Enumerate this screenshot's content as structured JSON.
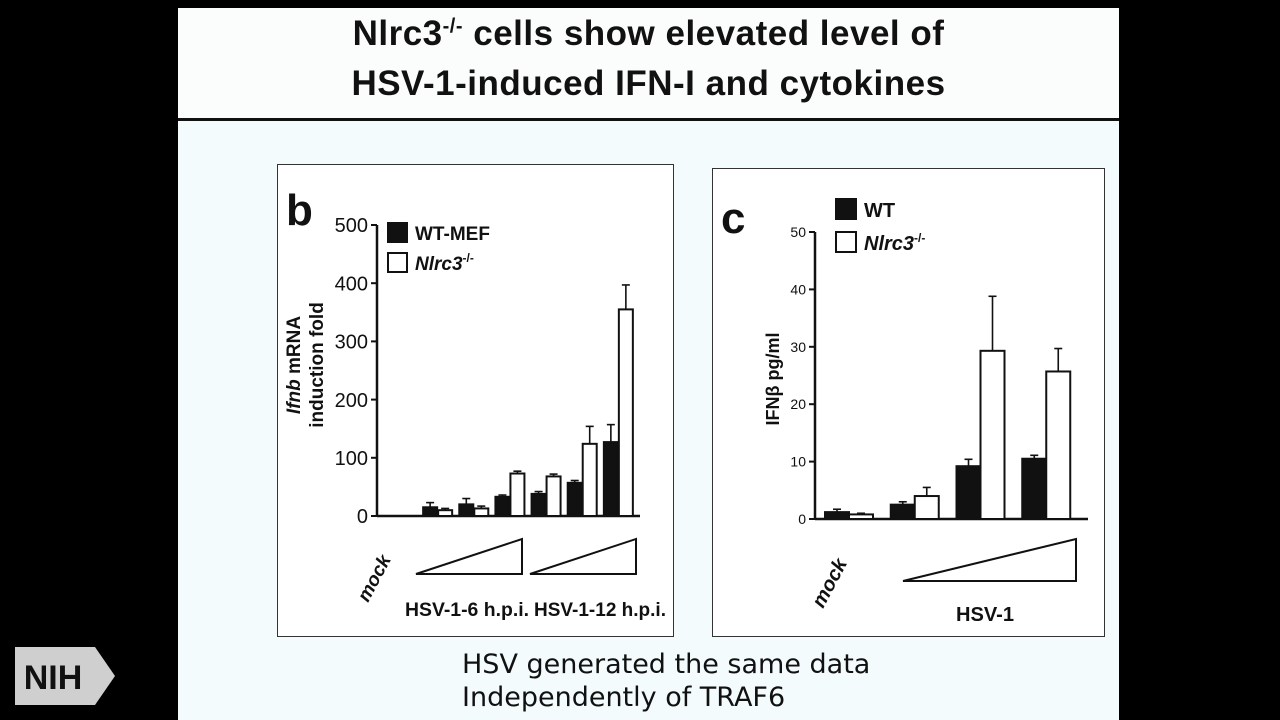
{
  "slide": {
    "title_prefix": "Nlrc3",
    "title_superscript": "-/-",
    "title_line1_rest": " cells show elevated level of",
    "title_line2": "HSV-1-induced IFN-I and cytokines",
    "caption_line1": "HSV generated the same data",
    "caption_line2": "Independently of TRAF6",
    "logo_text": "NIH"
  },
  "colors": {
    "filled_bar": "#111111",
    "open_bar": "#ffffff",
    "ink": "#111111"
  },
  "chart_data": [
    {
      "type": "bar",
      "panel_label": "b",
      "ylabel_italic": "Ifnb",
      "ylabel_rest": " mRNA",
      "ylabel_line2": "induction fold",
      "ylim": [
        0,
        500
      ],
      "yticks": [
        0,
        100,
        200,
        300,
        400,
        500
      ],
      "legend_position": "top-left",
      "series": [
        {
          "name": "WT-MEF",
          "fill": "filled",
          "values": [
            0,
            15,
            20,
            33,
            38,
            57,
            127
          ],
          "errors": [
            0,
            8,
            10,
            3,
            4,
            4,
            30
          ]
        },
        {
          "name": "Nlrc3",
          "name_sup": "-/-",
          "fill": "open",
          "values": [
            0,
            10,
            13,
            73,
            68,
            124,
            355
          ],
          "errors": [
            0,
            3,
            4,
            4,
            4,
            30,
            42
          ]
        }
      ],
      "mock_label": "mock",
      "group_labels": [
        "HSV-1-6 h.p.i.",
        "HSV-1-12 h.p.i."
      ],
      "x_note": "group 0 = mock; groups 1-3 = HSV-1-6 h.p.i. dose ramp; groups 4-6 = HSV-1-12 h.p.i. dose ramp"
    },
    {
      "type": "bar",
      "panel_label": "c",
      "ylabel": "IFNβ pg/ml",
      "ylim": [
        0,
        50
      ],
      "yticks": [
        0,
        10,
        20,
        30,
        40,
        50
      ],
      "legend_position": "top-left",
      "series": [
        {
          "name": "WT",
          "fill": "filled",
          "values": [
            1.2,
            2.5,
            9.2,
            10.5
          ],
          "errors": [
            0.5,
            0.5,
            1.2,
            0.6
          ]
        },
        {
          "name": "Nlrc3",
          "name_sup": "-/-",
          "fill": "open",
          "values": [
            0.8,
            4.0,
            29.3,
            25.7
          ],
          "errors": [
            0.2,
            1.5,
            9.5,
            4.0
          ]
        }
      ],
      "mock_label": "mock",
      "group_labels": [
        "HSV-1"
      ],
      "x_note": "group 0 = mock; groups 1-3 = HSV-1 dose ramp"
    }
  ]
}
